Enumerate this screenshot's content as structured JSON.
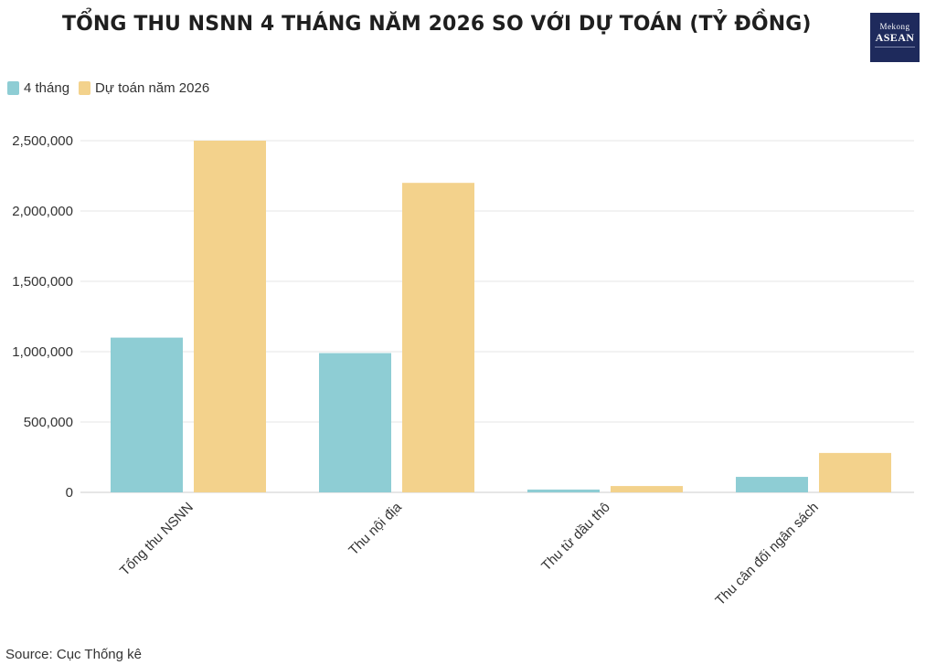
{
  "header": {
    "title": "TỔNG THU NSNN 4 THÁNG NĂM 2026 SO VỚI DỰ TOÁN (TỶ ĐỒNG)"
  },
  "logo": {
    "line1": "Mekong",
    "line2": "ASEAN"
  },
  "source": "Source: Cục Thống kê",
  "colors": {
    "s1": "#8ecdd4",
    "s2": "#f3d28c",
    "grid": "#e6e6e6",
    "axis": "#cccccc"
  },
  "chart_data": {
    "type": "bar",
    "categories": [
      "Tổng thu NSNN",
      "Thu nội địa",
      "Thu từ dầu thô",
      "Thu cân đối ngân sách"
    ],
    "series": [
      {
        "name": "4 tháng",
        "values": [
          1100000,
          990000,
          20000,
          110000
        ]
      },
      {
        "name": "Dự toán năm 2026",
        "values": [
          2500000,
          2200000,
          45000,
          280000
        ]
      }
    ],
    "ylim": [
      0,
      2500000
    ],
    "yticks": [
      "0",
      "500,000",
      "1,000,000",
      "1,500,000",
      "2,000,000",
      "2,500,000"
    ],
    "ytick_values": [
      0,
      500000,
      1000000,
      1500000,
      2000000,
      2500000
    ],
    "legend": "top-left",
    "grid": true
  }
}
